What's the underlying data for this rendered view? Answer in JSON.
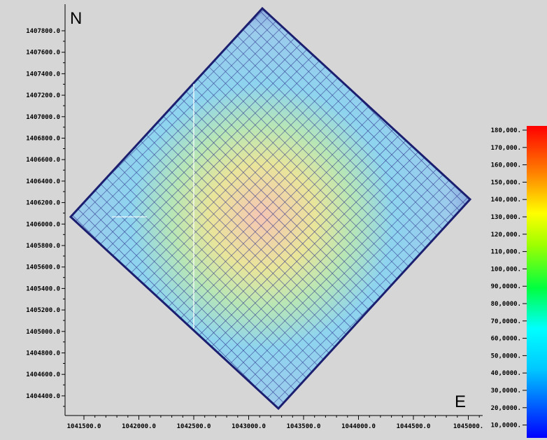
{
  "compass": {
    "north_label": "N",
    "east_label": "E"
  },
  "axes": {
    "y_labels": [
      "1407800.0",
      "1407600.0",
      "1407400.0",
      "1407200.0",
      "1407000.0",
      "1406800.0",
      "1406600.0",
      "1406400.0",
      "1406200.0",
      "1406000.0",
      "1405800.0",
      "1405600.0",
      "1405400.0",
      "1405200.0",
      "1405000.0",
      "1404800.0",
      "1404600.0",
      "1404400.0"
    ],
    "x_labels": [
      "1041500.0",
      "1042000.0",
      "1042500.0",
      "1043000.0",
      "1043500.0",
      "1044000.0",
      "1044500.0",
      "1045000."
    ]
  },
  "colorbar": {
    "labels": [
      "180,000.",
      "170,000.",
      "160,000.",
      "150,000.",
      "140,000.",
      "130,000.",
      "120,000.",
      "110,000.",
      "100,000.",
      "90,0000.",
      "80,0000.",
      "70,0000.",
      "60,0000.",
      "50,0000.",
      "40,0000.",
      "30,0000.",
      "20,0000.",
      "10,0000."
    ],
    "colors": [
      "#0000ff",
      "#00a0ff",
      "#00ffff",
      "#00ff60",
      "#40ff00",
      "#c0ff00",
      "#ffff00",
      "#ffa000",
      "#ff3000",
      "#ff0000"
    ]
  },
  "map": {
    "grid_color": "#2b2f8a",
    "field_colors": {
      "outer": "#b8e6f4",
      "mid": "#8fd0ef",
      "inner": "#d9e98e",
      "core": "#f7c8b6"
    }
  }
}
